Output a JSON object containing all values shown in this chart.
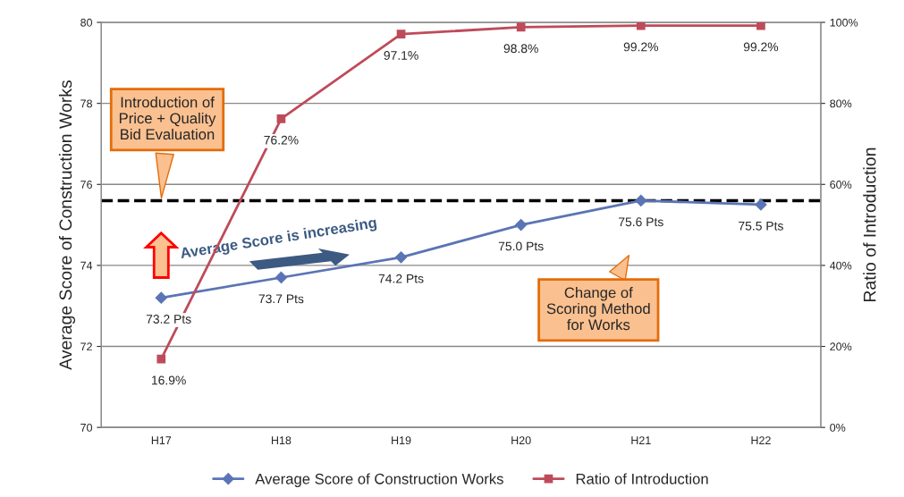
{
  "chart_data": {
    "type": "line",
    "ylabel": "Average Score of Construction Works",
    "y2label": "Ratio of Introduction",
    "categories": [
      "H17",
      "H18",
      "H19",
      "H20",
      "H21",
      "H22"
    ],
    "series": [
      {
        "name": "Average Score of Construction Works",
        "color": "#5b74b5",
        "marker": "diamond",
        "values": [
          73.2,
          73.7,
          74.2,
          75.0,
          75.6,
          75.5
        ],
        "value_labels": [
          "73.2 Pts",
          "73.7 Pts",
          "74.2 Pts",
          "75.0 Pts",
          "75.6 Pts",
          "75.5 Pts"
        ]
      },
      {
        "name": "Ratio of Introduction",
        "color": "#be4b5a",
        "marker": "square",
        "axis": "y2",
        "values": [
          16.9,
          76.2,
          97.1,
          98.8,
          99.2,
          99.2
        ],
        "value_labels": [
          "16.9%",
          "76.2%",
          "97.1%",
          "98.8%",
          "99.2%",
          "99.2%"
        ]
      }
    ],
    "ylim": [
      70,
      80
    ],
    "yticks": [
      70,
      72,
      74,
      76,
      78,
      80
    ],
    "y2lim": [
      0,
      100
    ],
    "y2ticks": [
      {
        "value": 0,
        "label": "0%"
      },
      {
        "value": 20,
        "label": "20%"
      },
      {
        "value": 40,
        "label": "40%"
      },
      {
        "value": 60,
        "label": "60%"
      },
      {
        "value": 80,
        "label": "80%"
      },
      {
        "value": 100,
        "label": "100%"
      }
    ],
    "ref_lines": [
      {
        "axis": "y",
        "value": 75.6,
        "color": "#000000",
        "line_style": "dashed"
      }
    ],
    "annotations": [
      {
        "text": "Introduction of\nPrice + Quality\nBid Evaluation",
        "x": "H17",
        "y": 75.6
      },
      "Average Score is increasing",
      "Change of\nScoring Method\nfor Works"
    ],
    "grid": "y",
    "legend": "bottom"
  }
}
